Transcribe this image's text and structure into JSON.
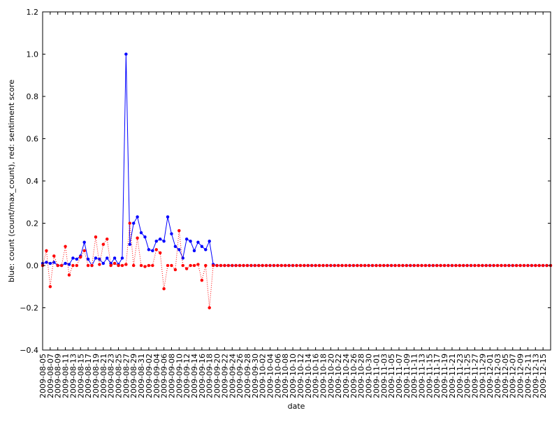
{
  "chart_data": {
    "type": "line",
    "title": "",
    "xlabel": "date",
    "ylabel": "blue: count (count/max_count), red: sentiment score",
    "ylim": [
      -0.4,
      1.2
    ],
    "yticks": [
      "−0.4",
      "−0.2",
      "0.0",
      "0.2",
      "0.4",
      "0.6",
      "0.8",
      "1.0",
      "1.2"
    ],
    "xtick_labels": [
      "2009-08-05",
      "2009-08-07",
      "2009-08-09",
      "2009-08-11",
      "2009-08-13",
      "2009-08-15",
      "2009-08-17",
      "2009-08-19",
      "2009-08-21",
      "2009-08-23",
      "2009-08-25",
      "2009-08-27",
      "2009-08-29",
      "2009-08-31",
      "2009-09-02",
      "2009-09-04",
      "2009-09-06",
      "2009-09-08",
      "2009-09-10",
      "2009-09-12",
      "2009-09-14",
      "2009-09-16",
      "2009-09-18",
      "2009-09-20",
      "2009-09-22",
      "2009-09-24",
      "2009-09-26",
      "2009-09-28",
      "2009-09-30",
      "2009-10-02",
      "2009-10-04",
      "2009-10-06",
      "2009-10-08",
      "2009-10-10",
      "2009-10-12",
      "2009-10-14",
      "2009-10-16",
      "2009-10-18",
      "2009-10-20",
      "2009-10-22",
      "2009-10-24",
      "2009-10-26",
      "2009-10-28",
      "2009-10-30",
      "2009-11-01",
      "2009-11-03",
      "2009-11-05",
      "2009-11-07",
      "2009-11-09",
      "2009-11-11",
      "2009-11-13",
      "2009-11-15",
      "2009-11-17",
      "2009-11-19",
      "2009-11-21",
      "2009-11-23",
      "2009-11-25",
      "2009-11-27",
      "2009-11-29",
      "2009-12-01",
      "2009-12-03",
      "2009-12-05",
      "2009-12-07",
      "2009-12-09",
      "2009-12-11",
      "2009-12-13",
      "2009-12-15"
    ],
    "grid": false,
    "x_start": "2009-08-05",
    "x_end": "2009-12-17",
    "series": [
      {
        "color": "#0000ff",
        "style": "solid",
        "values": [
          0.01,
          0.015,
          0.01,
          0.015,
          0.0,
          0.0,
          0.01,
          0.005,
          0.035,
          0.03,
          0.045,
          0.11,
          0.03,
          0.0,
          0.035,
          0.03,
          0.01,
          0.035,
          0.01,
          0.035,
          0.005,
          0.035,
          1.0,
          0.1,
          0.2,
          0.23,
          0.155,
          0.135,
          0.075,
          0.07,
          0.115,
          0.125,
          0.115,
          0.23,
          0.15,
          0.09,
          0.075,
          0.035,
          0.125,
          0.115,
          0.07,
          0.11,
          0.09,
          0.075,
          0.115,
          0.005
        ]
      },
      {
        "color": "#ff0000",
        "style": "dotted",
        "values": [
          0.0,
          0.07,
          -0.1,
          0.045,
          0.0,
          0.0,
          0.09,
          -0.045,
          0.0,
          0.0,
          0.04,
          0.07,
          0.0,
          0.0,
          0.135,
          0.005,
          0.1,
          0.125,
          0.0,
          0.01,
          0.0,
          0.0,
          0.005,
          0.2,
          0.0,
          0.13,
          0.0,
          -0.005,
          0.0,
          0.0,
          0.075,
          0.06,
          -0.11,
          0.0,
          0.0,
          -0.02,
          0.165,
          0.0,
          -0.015,
          0.0,
          0.0,
          0.005,
          -0.07,
          0.0,
          -0.2,
          0.0
        ]
      }
    ]
  }
}
